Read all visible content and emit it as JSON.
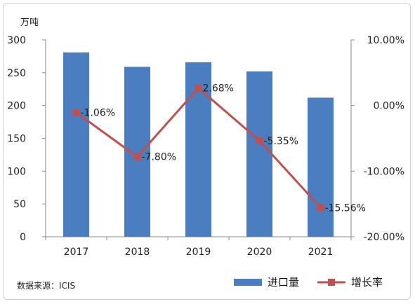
{
  "chart_data": {
    "type": "bar+line",
    "categories": [
      "2017",
      "2018",
      "2019",
      "2020",
      "2021"
    ],
    "series": [
      {
        "name": "进口量",
        "type": "bar",
        "axis": "left",
        "values": [
          281,
          259,
          266,
          252,
          212
        ],
        "color": "#4a7ec0"
      },
      {
        "name": "增长率",
        "type": "line",
        "axis": "right",
        "values": [
          -1.06,
          -7.8,
          2.68,
          -5.35,
          -15.56
        ],
        "labels": [
          "-1.06%",
          "-7.80%",
          "2.68%",
          "-5.35%",
          "-15.56%"
        ],
        "color": "#c0504d"
      }
    ],
    "y_left": {
      "unit": "万吨",
      "min": 0,
      "max": 300,
      "ticks": [
        0,
        50,
        100,
        150,
        200,
        250,
        300
      ],
      "tick_labels": [
        "0",
        "50",
        "100",
        "150",
        "200",
        "250",
        "300"
      ]
    },
    "y_right": {
      "min": -20,
      "max": 10,
      "ticks": [
        10,
        0,
        -10,
        -20
      ],
      "tick_labels": [
        "10.00%",
        "0.00%",
        "-10.00%",
        "-20.00%"
      ]
    },
    "legend": {
      "position": "bottom-right",
      "items": [
        "进口量",
        "增长率"
      ]
    },
    "source": "数据来源：ICIS",
    "grid": false
  }
}
